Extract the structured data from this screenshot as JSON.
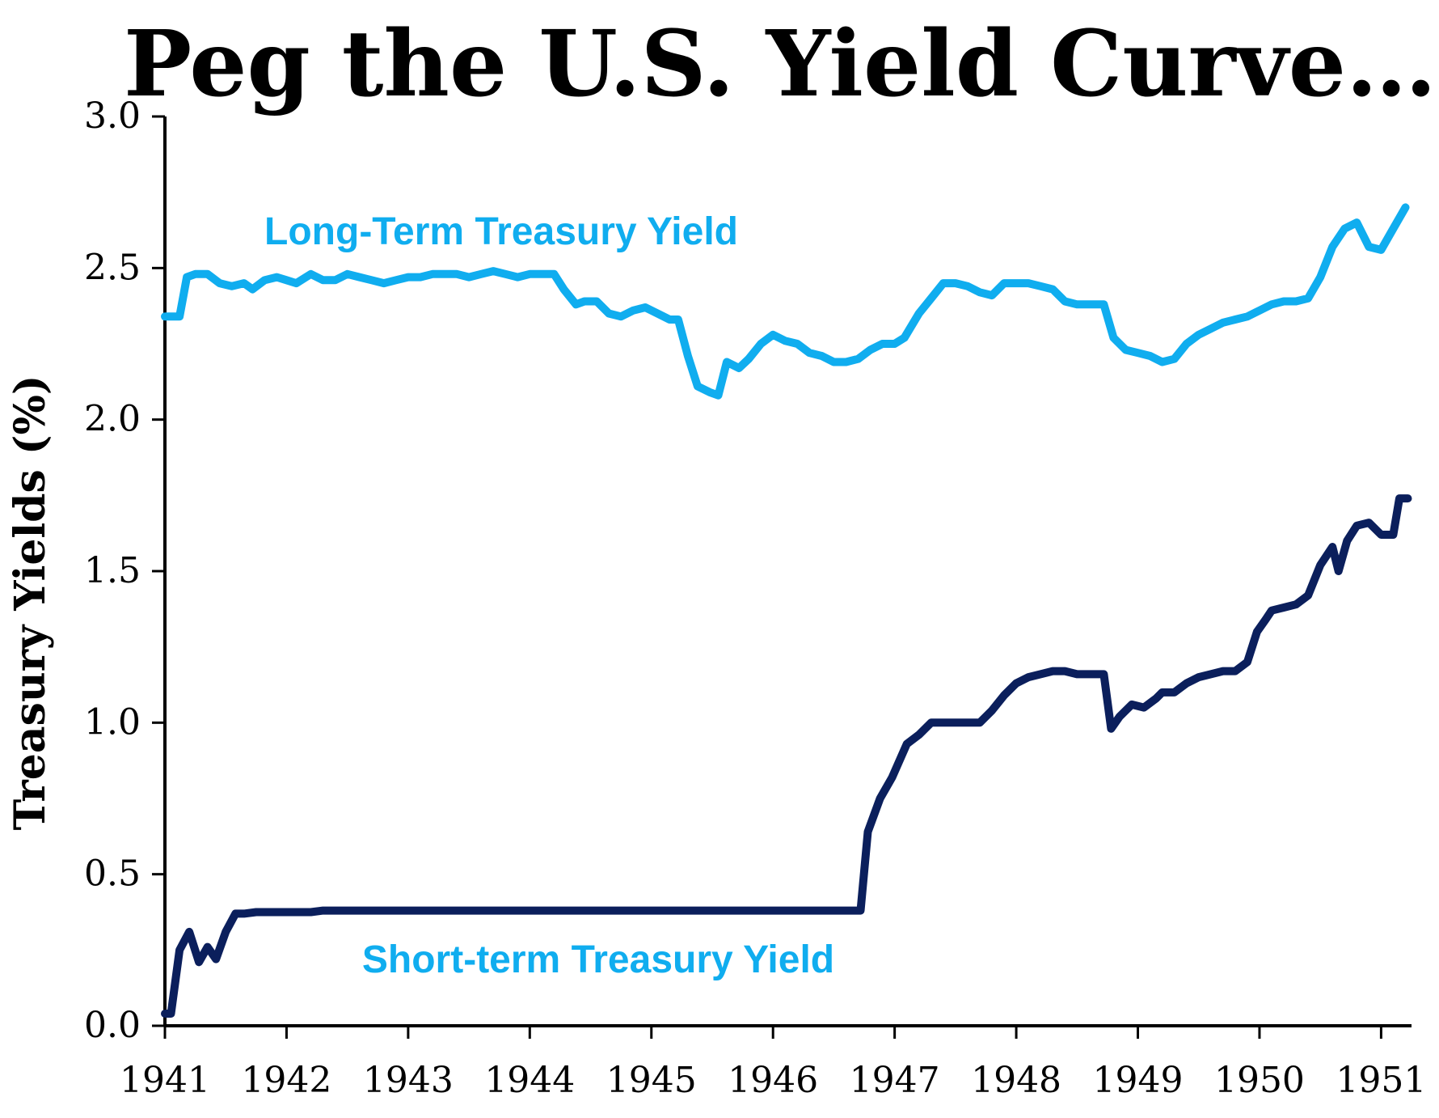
{
  "chart_data": {
    "type": "line",
    "title": "Peg the U.S. Yield Curve…",
    "xlabel": "",
    "ylabel": "Treasury Yields (%)",
    "ylim": [
      0,
      3
    ],
    "xlim": [
      1941,
      1951.25
    ],
    "yticks": [
      "0.0",
      "0.5",
      "1.0",
      "1.5",
      "2.0",
      "2.5",
      "3.0"
    ],
    "ytick_values": [
      0,
      0.5,
      1.0,
      1.5,
      2.0,
      2.5,
      3.0
    ],
    "xticks": [
      "1941",
      "1942",
      "1943",
      "1944",
      "1945",
      "1946",
      "1947",
      "1948",
      "1949",
      "1950",
      "1951"
    ],
    "xtick_values": [
      1941,
      1942,
      1943,
      1944,
      1945,
      1946,
      1947,
      1948,
      1949,
      1950,
      1951
    ],
    "grid": false,
    "series": [
      {
        "name": "Long-Term Treasury Yield",
        "color": "#10ADEF",
        "x": [
          1941.0,
          1941.12,
          1941.18,
          1941.25,
          1941.35,
          1941.45,
          1941.55,
          1941.65,
          1941.72,
          1941.82,
          1941.92,
          1942.0,
          1942.08,
          1942.2,
          1942.3,
          1942.4,
          1942.5,
          1942.6,
          1942.7,
          1942.8,
          1942.9,
          1943.0,
          1943.1,
          1943.2,
          1943.3,
          1943.4,
          1943.5,
          1943.6,
          1943.7,
          1943.8,
          1943.9,
          1944.0,
          1944.1,
          1944.2,
          1944.28,
          1944.38,
          1944.45,
          1944.55,
          1944.65,
          1944.75,
          1944.85,
          1944.95,
          1945.05,
          1945.15,
          1945.22,
          1945.3,
          1945.38,
          1945.48,
          1945.55,
          1945.62,
          1945.72,
          1945.8,
          1945.9,
          1946.0,
          1946.1,
          1946.2,
          1946.3,
          1946.4,
          1946.5,
          1946.6,
          1946.7,
          1946.8,
          1946.9,
          1947.0,
          1947.08,
          1947.2,
          1947.3,
          1947.4,
          1947.5,
          1947.6,
          1947.7,
          1947.8,
          1947.9,
          1948.0,
          1948.1,
          1948.2,
          1948.3,
          1948.4,
          1948.5,
          1948.6,
          1948.72,
          1948.8,
          1948.9,
          1949.0,
          1949.1,
          1949.2,
          1949.3,
          1949.4,
          1949.5,
          1949.6,
          1949.7,
          1949.8,
          1949.9,
          1950.0,
          1950.1,
          1950.2,
          1950.3,
          1950.4,
          1950.5,
          1950.6,
          1950.7,
          1950.8,
          1950.9,
          1951.0,
          1951.1,
          1951.2
        ],
        "values": [
          2.34,
          2.34,
          2.47,
          2.48,
          2.48,
          2.45,
          2.44,
          2.45,
          2.43,
          2.46,
          2.47,
          2.46,
          2.45,
          2.48,
          2.46,
          2.46,
          2.48,
          2.47,
          2.46,
          2.45,
          2.46,
          2.47,
          2.47,
          2.48,
          2.48,
          2.48,
          2.47,
          2.48,
          2.49,
          2.48,
          2.47,
          2.48,
          2.48,
          2.48,
          2.43,
          2.38,
          2.39,
          2.39,
          2.35,
          2.34,
          2.36,
          2.37,
          2.35,
          2.33,
          2.33,
          2.21,
          2.11,
          2.09,
          2.08,
          2.19,
          2.17,
          2.2,
          2.25,
          2.28,
          2.26,
          2.25,
          2.22,
          2.21,
          2.19,
          2.19,
          2.2,
          2.23,
          2.25,
          2.25,
          2.27,
          2.35,
          2.4,
          2.45,
          2.45,
          2.44,
          2.42,
          2.41,
          2.45,
          2.45,
          2.45,
          2.44,
          2.43,
          2.39,
          2.38,
          2.38,
          2.38,
          2.27,
          2.23,
          2.22,
          2.21,
          2.19,
          2.2,
          2.25,
          2.28,
          2.3,
          2.32,
          2.33,
          2.34,
          2.36,
          2.38,
          2.39,
          2.39,
          2.4,
          2.47,
          2.57,
          2.63,
          2.65,
          2.57,
          2.56,
          2.63,
          2.7
        ]
      },
      {
        "name": "Short-term Treasury Yield",
        "color": "#0B1F5C",
        "x": [
          1941.0,
          1941.05,
          1941.12,
          1941.2,
          1941.28,
          1941.35,
          1941.42,
          1941.5,
          1941.58,
          1941.65,
          1941.75,
          1941.85,
          1942.0,
          1942.1,
          1942.2,
          1942.3,
          1942.4,
          1942.5,
          1942.6,
          1942.7,
          1942.8,
          1942.9,
          1943.0,
          1943.2,
          1943.4,
          1943.6,
          1943.8,
          1944.0,
          1944.2,
          1944.4,
          1944.6,
          1944.8,
          1945.0,
          1945.2,
          1945.4,
          1945.6,
          1945.8,
          1946.0,
          1946.2,
          1946.4,
          1946.6,
          1946.72,
          1946.78,
          1946.88,
          1946.98,
          1947.1,
          1947.2,
          1947.3,
          1947.4,
          1947.5,
          1947.6,
          1947.7,
          1947.8,
          1947.9,
          1948.0,
          1948.1,
          1948.2,
          1948.3,
          1948.4,
          1948.5,
          1948.6,
          1948.72,
          1948.78,
          1948.85,
          1948.95,
          1949.05,
          1949.15,
          1949.2,
          1949.3,
          1949.4,
          1949.5,
          1949.6,
          1949.7,
          1949.8,
          1949.9,
          1949.98,
          1950.05,
          1950.1,
          1950.2,
          1950.3,
          1950.4,
          1950.5,
          1950.6,
          1950.65,
          1950.72,
          1950.8,
          1950.9,
          1951.0,
          1951.1,
          1951.15,
          1951.22
        ],
        "values": [
          0.04,
          0.04,
          0.25,
          0.31,
          0.21,
          0.26,
          0.22,
          0.31,
          0.37,
          0.37,
          0.375,
          0.375,
          0.375,
          0.375,
          0.375,
          0.38,
          0.38,
          0.38,
          0.38,
          0.38,
          0.38,
          0.38,
          0.38,
          0.38,
          0.38,
          0.38,
          0.38,
          0.38,
          0.38,
          0.38,
          0.38,
          0.38,
          0.38,
          0.38,
          0.38,
          0.38,
          0.38,
          0.38,
          0.38,
          0.38,
          0.38,
          0.38,
          0.64,
          0.75,
          0.82,
          0.93,
          0.96,
          1.0,
          1.0,
          1.0,
          1.0,
          1.0,
          1.04,
          1.09,
          1.13,
          1.15,
          1.16,
          1.17,
          1.17,
          1.16,
          1.16,
          1.16,
          0.98,
          1.02,
          1.06,
          1.05,
          1.08,
          1.1,
          1.1,
          1.13,
          1.15,
          1.16,
          1.17,
          1.17,
          1.2,
          1.3,
          1.34,
          1.37,
          1.38,
          1.39,
          1.42,
          1.52,
          1.58,
          1.5,
          1.6,
          1.65,
          1.66,
          1.62,
          1.62,
          1.74,
          1.74
        ]
      }
    ],
    "annotations": [
      "Long-Term Treasury Yield",
      "Short-term Treasury Yield"
    ]
  }
}
